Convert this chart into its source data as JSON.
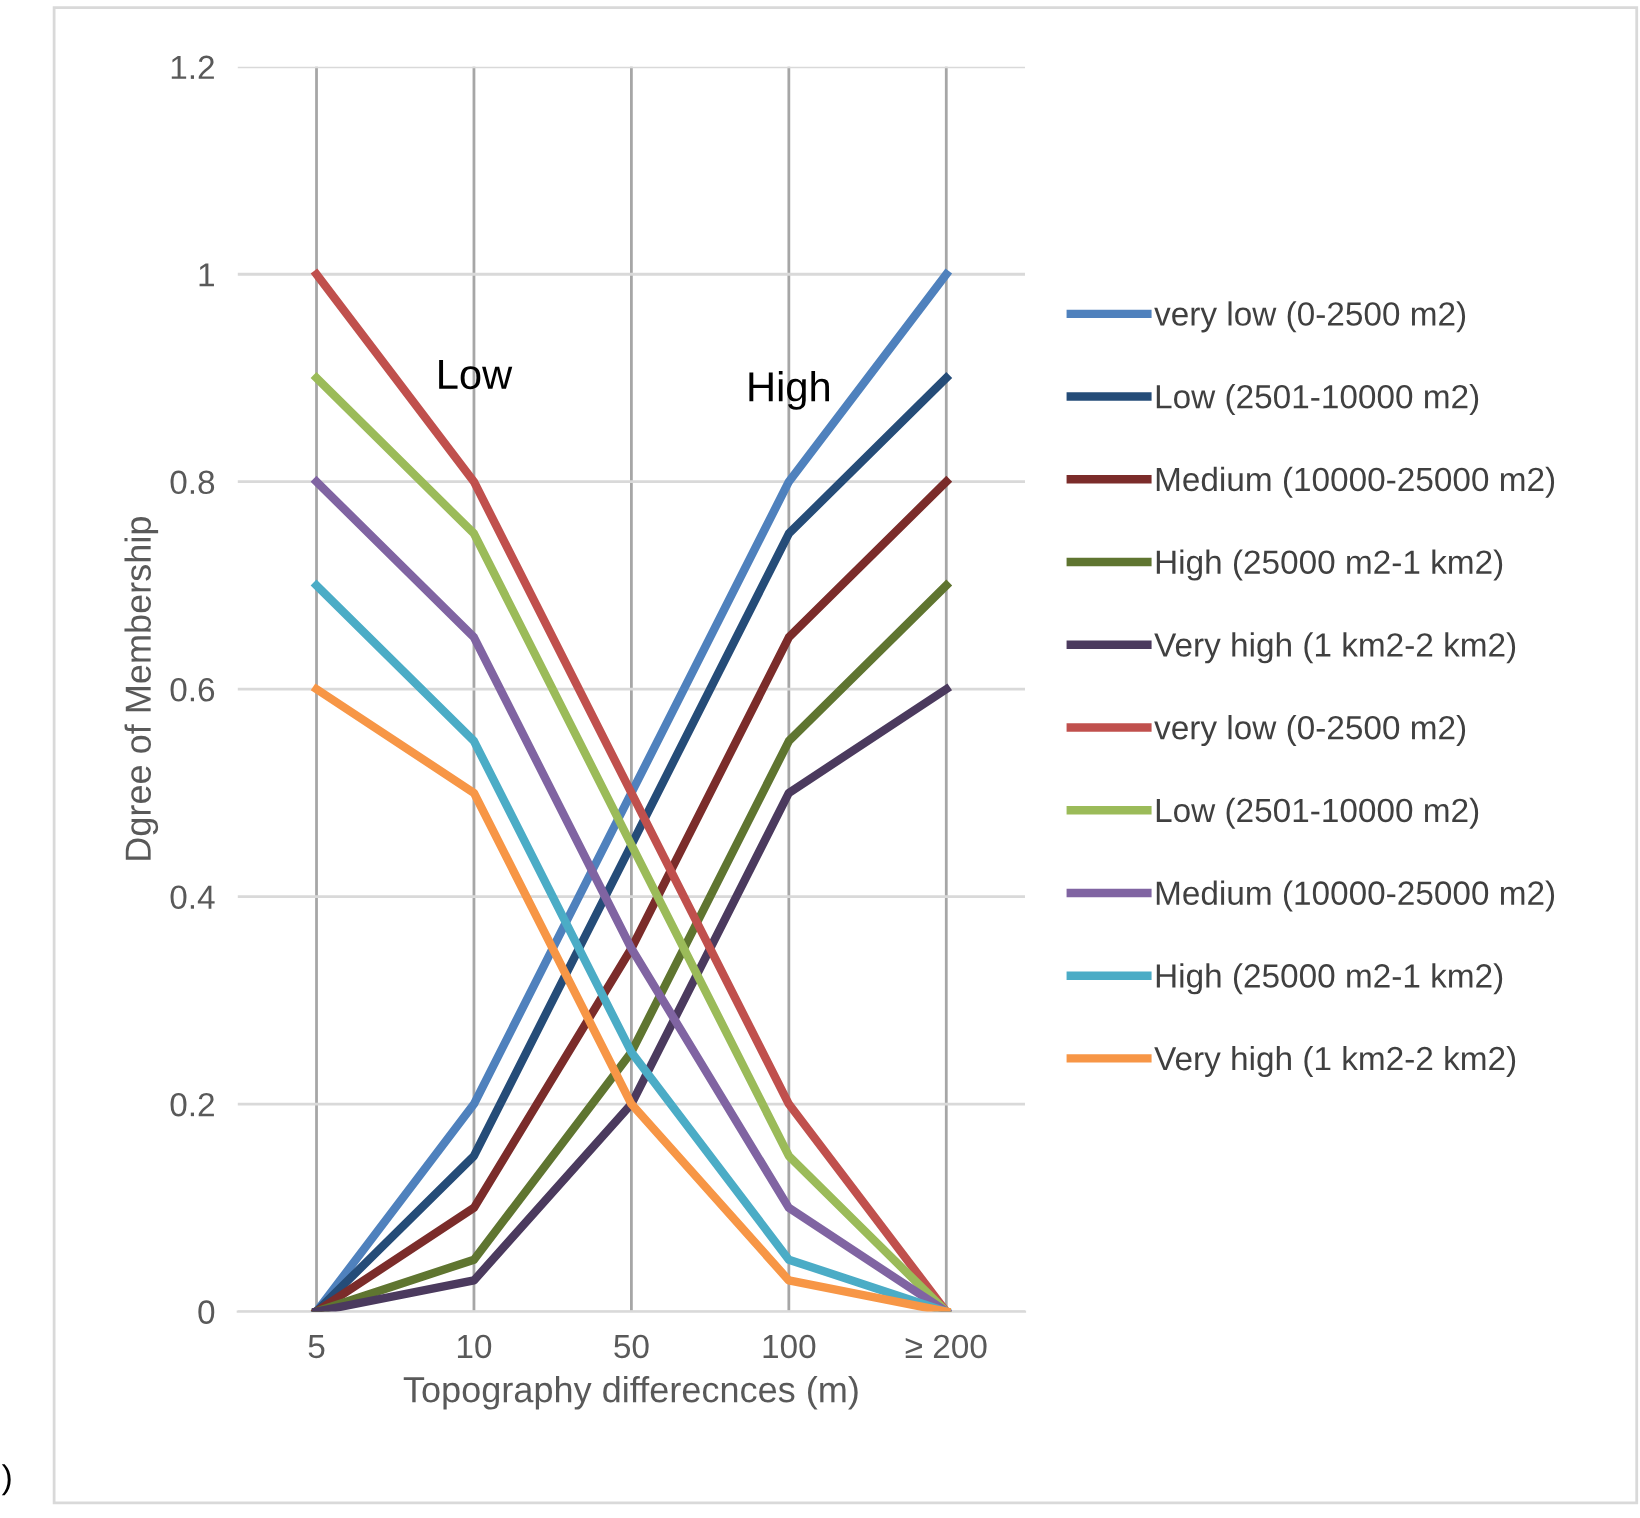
{
  "chart_data": {
    "type": "line",
    "xlabel": "Topography differecnces (m)",
    "ylabel": "Dgree of Membership",
    "categories": [
      "5",
      "10",
      "50",
      "100",
      "≥ 200"
    ],
    "ylim": [
      0,
      1.2
    ],
    "yticks": [
      0,
      0.2,
      0.4,
      0.6,
      0.8,
      1,
      1.2
    ],
    "grid": true,
    "legend": "right",
    "marker": "none",
    "line_style": "solid",
    "series": [
      {
        "name": "very low (0-2500 m2)",
        "color": "#4f81bd",
        "values": [
          0,
          0.2,
          0.5,
          0.8,
          1
        ]
      },
      {
        "name": "Low (2501-10000 m2)",
        "color": "#254c78",
        "values": [
          0,
          0.15,
          0.45,
          0.75,
          0.9
        ]
      },
      {
        "name": "Medium (10000-25000 m2)",
        "color": "#7b2c2a",
        "values": [
          0,
          0.1,
          0.35,
          0.65,
          0.8
        ]
      },
      {
        "name": "High (25000 m2-1 km2)",
        "color": "#5f7530",
        "values": [
          0,
          0.05,
          0.25,
          0.55,
          0.7
        ]
      },
      {
        "name": "Very high (1 km2-2 km2)",
        "color": "#4b3a5e",
        "values": [
          0,
          0.03,
          0.2,
          0.5,
          0.6
        ]
      },
      {
        "name": "very low (0-2500 m2)",
        "color": "#c0504d",
        "values": [
          1,
          0.8,
          0.5,
          0.2,
          0
        ]
      },
      {
        "name": "Low (2501-10000 m2)",
        "color": "#9bbb59",
        "values": [
          0.9,
          0.75,
          0.45,
          0.15,
          0
        ]
      },
      {
        "name": "Medium (10000-25000 m2)",
        "color": "#8064a2",
        "values": [
          0.8,
          0.65,
          0.35,
          0.1,
          0
        ]
      },
      {
        "name": "High (25000 m2-1 km2)",
        "color": "#4bacc6",
        "values": [
          0.7,
          0.55,
          0.25,
          0.05,
          0
        ]
      },
      {
        "name": "Very high (1 km2-2 km2)",
        "color": "#f79646",
        "values": [
          0.6,
          0.5,
          0.2,
          0.03,
          0
        ]
      }
    ],
    "annotations": [
      "Low",
      "High",
      ")"
    ]
  }
}
